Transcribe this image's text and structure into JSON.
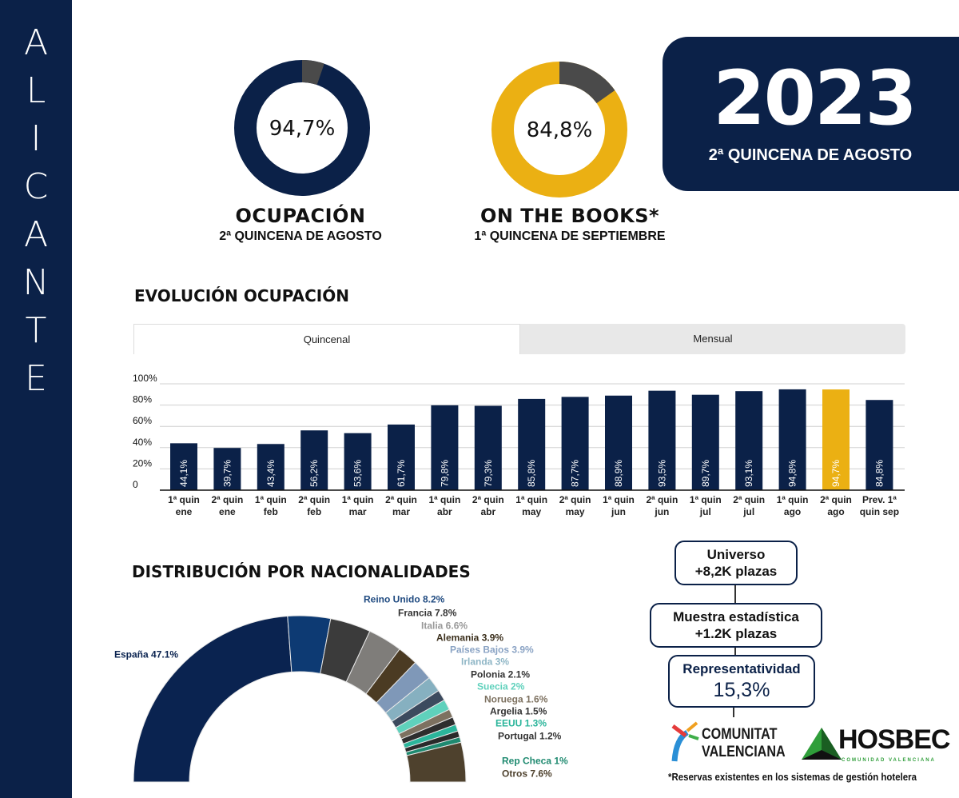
{
  "sidebar": {
    "title_letters": [
      "A",
      "L",
      "I",
      "C",
      "A",
      "N",
      "T",
      "E"
    ]
  },
  "year_box": {
    "year": "2023",
    "subtitle": "2ª QUINCENA DE AGOSTO"
  },
  "kpis": [
    {
      "value": "94,7%",
      "fraction": 0.947,
      "title": "OCUPACIÓN",
      "subtitle": "2ª QUINCENA DE AGOSTO",
      "color": "#0b2148",
      "rest_color": "#4a4a4a"
    },
    {
      "value": "84,8%",
      "fraction": 0.848,
      "title": "ON THE BOOKS*",
      "subtitle": "1ª QUINCENA DE SEPTIEMBRE",
      "color": "#ebb013",
      "rest_color": "#4a4a4a"
    }
  ],
  "evolution": {
    "title": "EVOLUCIÓN OCUPACIÓN",
    "tabs": [
      {
        "label": "Quincenal",
        "active": true
      },
      {
        "label": "Mensual",
        "active": false
      }
    ]
  },
  "nationalities": {
    "title": "DISTRIBUCIÓN POR NACIONALIDADES"
  },
  "sample": {
    "universe": {
      "line1": "Universo",
      "line2": "+8,2K plazas"
    },
    "muestra": {
      "line1": "Muestra estadística",
      "line2": "+1.2K plazas"
    },
    "repr": {
      "line1": "Representatividad",
      "line2": "15,3%"
    }
  },
  "logos": {
    "cv_line1": "COMUNITAT",
    "cv_line2": "VALENCIANA",
    "hosbec": "HOSBEC",
    "hosbec_sub": "COMUNIDAD VALENCIANA"
  },
  "footnote": "*Reservas existentes en los sistemas de gestión hotelera",
  "chart_data": [
    {
      "type": "bar",
      "title": "EVOLUCIÓN OCUPACIÓN",
      "categories": [
        "1ª quin ene",
        "2ª quin ene",
        "1ª quin feb",
        "2ª quin feb",
        "1ª quin mar",
        "2ª quin mar",
        "1ª quin abr",
        "2ª quin abr",
        "1ª quin may",
        "2ª quin may",
        "1ª quin jun",
        "2ª quin jun",
        "1ª quin jul",
        "2ª quin jul",
        "1ª quin ago",
        "2ª quin ago",
        "Prev. 1ª quin sep"
      ],
      "values": [
        44.1,
        39.7,
        43.4,
        56.2,
        53.6,
        61.7,
        79.8,
        79.3,
        85.8,
        87.7,
        88.9,
        93.5,
        89.7,
        93.1,
        94.8,
        94.7,
        84.8
      ],
      "data_labels": [
        "44,1%",
        "39,7%",
        "43,4%",
        "56,2%",
        "53,6%",
        "61,7%",
        "79,8%",
        "79,3%",
        "85,8%",
        "87,7%",
        "88,9%",
        "93,5%",
        "89,7%",
        "93,1%",
        "94,8%",
        "94,7%",
        "84,8%"
      ],
      "highlight_index": 15,
      "colors": {
        "bar": "#0b2148",
        "highlight": "#ebb013"
      },
      "yticks": [
        "0",
        "20%",
        "40%",
        "60%",
        "80%",
        "100%"
      ],
      "ylim": [
        0,
        100
      ],
      "grid": true
    },
    {
      "type": "pie",
      "variant": "half-donut",
      "title": "DISTRIBUCIÓN POR NACIONALIDADES",
      "slices": [
        {
          "label": "España",
          "value": 47.1,
          "text": "España 47.1%",
          "color": "#0a2350",
          "text_color": "#0a2350"
        },
        {
          "label": "Reino Unido",
          "value": 8.2,
          "text": "Reino Unido 8.2%",
          "color": "#0d3a73",
          "text_color": "#1f4a80"
        },
        {
          "label": "Francia",
          "value": 7.8,
          "text": "Francia 7.8%",
          "color": "#3b3b3b",
          "text_color": "#333333"
        },
        {
          "label": "Italia",
          "value": 6.6,
          "text": "Italia 6.6%",
          "color": "#7f7d7a",
          "text_color": "#999999"
        },
        {
          "label": "Alemania",
          "value": 3.9,
          "text": "Alemania 3.9%",
          "color": "#4b3b23",
          "text_color": "#3b2f1c"
        },
        {
          "label": "Países Bajos",
          "value": 3.9,
          "text": "Países Bajos 3.9%",
          "color": "#7f98b8",
          "text_color": "#8aa3c4"
        },
        {
          "label": "Irlanda",
          "value": 3,
          "text": "Irlanda 3%",
          "color": "#86b0c0",
          "text_color": "#8fb6c6"
        },
        {
          "label": "Polonia",
          "value": 2.1,
          "text": "Polonia 2.1%",
          "color": "#3c4a5e",
          "text_color": "#333333"
        },
        {
          "label": "Suecia",
          "value": 2,
          "text": "Suecia 2%",
          "color": "#5fd1bc",
          "text_color": "#5fd1bc"
        },
        {
          "label": "Noruega",
          "value": 1.6,
          "text": "Noruega 1.6%",
          "color": "#7d7160",
          "text_color": "#7d7160"
        },
        {
          "label": "Argelia",
          "value": 1.5,
          "text": "Argelia 1.5%",
          "color": "#2e2e2e",
          "text_color": "#333333"
        },
        {
          "label": "EEUU",
          "value": 1.3,
          "text": "EEUU 1.3%",
          "color": "#2bb59b",
          "text_color": "#2bb59b"
        },
        {
          "label": "Portugal",
          "value": 1.2,
          "text": "Portugal 1.2%",
          "color": "#2a2a2a",
          "text_color": "#333333"
        },
        {
          "label": "Rep Checa",
          "value": 1,
          "text": "Rep Checa 1%",
          "color": "#1f8a70",
          "text_color": "#1f8a70"
        },
        {
          "label": "Otros",
          "value": 7.6,
          "text": "Otros 7.6%",
          "color": "#4e412d",
          "text_color": "#4e412d"
        }
      ]
    }
  ]
}
